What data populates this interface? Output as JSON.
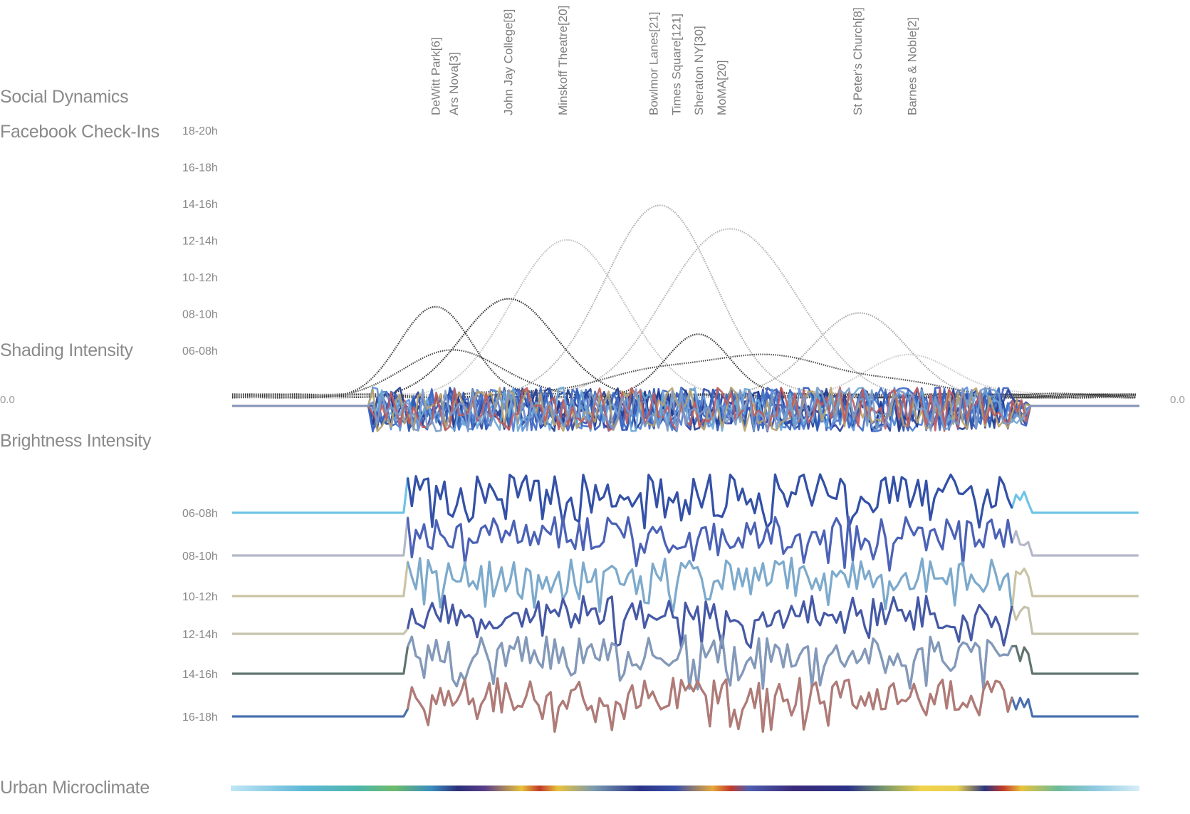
{
  "title": "Social Dynamics",
  "sections": {
    "checkins": "Facebook Check-Ins",
    "shading": "Shading Intensity",
    "brightness": "Brightness Intensity",
    "microclimate": "Urban Microclimate"
  },
  "zero_left": "0.0",
  "zero_right": "0.0",
  "chart_data": [
    {
      "type": "line",
      "title": "Facebook Check-Ins",
      "y_ticks": [
        "18-20h",
        "16-18h",
        "14-16h",
        "12-14h",
        "10-12h",
        "08-10h",
        "06-08h"
      ],
      "x_range": [
        0,
        100
      ],
      "locations": [
        {
          "name": "DeWitt Park[6]",
          "x": 22.5
        },
        {
          "name": "Ars Nova[3]",
          "x": 24.5
        },
        {
          "name": "John Jay College[8]",
          "x": 30.5
        },
        {
          "name": "Minskoff Theatre[20]",
          "x": 36.5
        },
        {
          "name": "Bowlmor Lanes[21]",
          "x": 46.5
        },
        {
          "name": "Times Square[121]",
          "x": 49.0
        },
        {
          "name": "Sheraton NY[30]",
          "x": 51.5
        },
        {
          "name": "MoMA[20]",
          "x": 54.0
        },
        {
          "name": "St Peter's Church[8]",
          "x": 69.0
        },
        {
          "name": "Barnes & Noble[2]",
          "x": 75.0
        }
      ],
      "series": [
        {
          "name": "Bowlmor Lanes",
          "peak_x": 47,
          "peak": 5.2,
          "width": 6,
          "color": "#b0b0b0"
        },
        {
          "name": "MoMA",
          "peak_x": 55,
          "peak": 4.6,
          "width": 7,
          "color": "#b5b5b5"
        },
        {
          "name": "Minskoff Theatre",
          "peak_x": 37,
          "peak": 4.3,
          "width": 6,
          "color": "#c0c0c0"
        },
        {
          "name": "St Peter's Church",
          "peak_x": 69,
          "peak": 2.3,
          "width": 5,
          "color": "#a8a8a8"
        },
        {
          "name": "Barnes & Noble",
          "peak_x": 75,
          "peak": 1.1,
          "width": 5,
          "color": "#c8c8c8"
        },
        {
          "name": "John Jay College",
          "peak_x": 30.5,
          "peak": 2.7,
          "width": 5,
          "color": "#303030"
        },
        {
          "name": "DeWitt Park",
          "peak_x": 22.5,
          "peak": 2.4,
          "width": 4,
          "color": "#404040"
        },
        {
          "name": "Ars Nova",
          "peak_x": 24.5,
          "peak": 1.3,
          "width": 5,
          "color": "#4a4a4a"
        },
        {
          "name": "Sheraton NY",
          "peak_x": 51.5,
          "peak": 1.7,
          "width": 3.5,
          "color": "#353535"
        },
        {
          "name": "Times Square",
          "peak_x": 57,
          "peak": 1.1,
          "width": 12,
          "color": "#505050"
        }
      ]
    },
    {
      "type": "line",
      "title": "Shading Intensity",
      "y_labels": [
        "0.0",
        "0.0"
      ],
      "series_count": 12,
      "active_range": [
        15,
        86
      ]
    },
    {
      "type": "line",
      "title": "Brightness Intensity",
      "series": [
        {
          "name": "06-08h",
          "color": "#6fc4e6"
        },
        {
          "name": "08-10h",
          "color": "#b3b8c8"
        },
        {
          "name": "10-12h",
          "color": "#c9c4a4"
        },
        {
          "name": "12-14h",
          "color": "#c5c3ad"
        },
        {
          "name": "14-16h",
          "color": "#5f7470"
        },
        {
          "name": "16-18h",
          "color": "#4a6fb0"
        }
      ],
      "active_range": [
        19,
        86
      ]
    },
    {
      "type": "heatmap",
      "title": "Urban Microclimate",
      "stops": [
        {
          "x": 0,
          "color": "#bfe6f4"
        },
        {
          "x": 8,
          "color": "#5fb8d8"
        },
        {
          "x": 14,
          "color": "#4db6ac"
        },
        {
          "x": 18,
          "color": "#6dbb6a"
        },
        {
          "x": 22,
          "color": "#3a8fbf"
        },
        {
          "x": 25,
          "color": "#2b2f7a"
        },
        {
          "x": 28,
          "color": "#5a3e8a"
        },
        {
          "x": 32,
          "color": "#e8c23a"
        },
        {
          "x": 34,
          "color": "#c23a2a"
        },
        {
          "x": 36,
          "color": "#e8c23a"
        },
        {
          "x": 40,
          "color": "#7a9ab0"
        },
        {
          "x": 45,
          "color": "#2a3388"
        },
        {
          "x": 49,
          "color": "#3a4fa8"
        },
        {
          "x": 53,
          "color": "#e8a93a"
        },
        {
          "x": 55,
          "color": "#c33a2a"
        },
        {
          "x": 57,
          "color": "#4f5fb0"
        },
        {
          "x": 62,
          "color": "#3a2a7a"
        },
        {
          "x": 68,
          "color": "#2b3388"
        },
        {
          "x": 72,
          "color": "#7a9a6a"
        },
        {
          "x": 76,
          "color": "#f2d24a"
        },
        {
          "x": 80,
          "color": "#e8d050"
        },
        {
          "x": 83,
          "color": "#2a3580"
        },
        {
          "x": 85,
          "color": "#c33a2a"
        },
        {
          "x": 87,
          "color": "#e8c23a"
        },
        {
          "x": 91,
          "color": "#6dbb9a"
        },
        {
          "x": 95,
          "color": "#8cc8e0"
        },
        {
          "x": 100,
          "color": "#d8eef6"
        }
      ]
    }
  ]
}
